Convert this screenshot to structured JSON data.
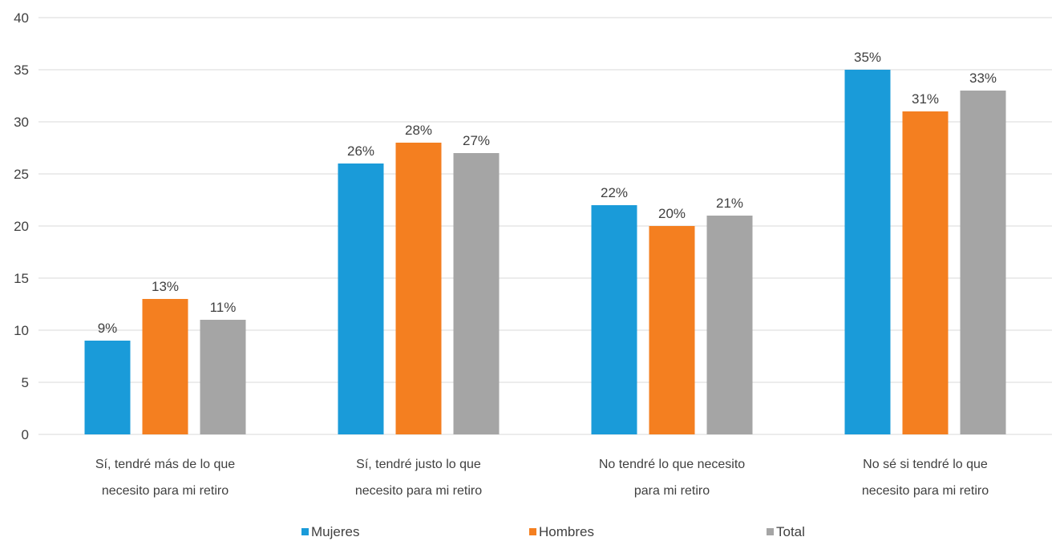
{
  "chart_data": {
    "type": "bar",
    "categories": [
      [
        "Sí, tendré más de lo que",
        "necesito para mi retiro"
      ],
      [
        "Sí, tendré justo lo que",
        "necesito para mi retiro"
      ],
      [
        "No tendré lo que necesito",
        "para mi retiro"
      ],
      [
        "No sé si tendré lo que",
        "necesito para mi retiro"
      ]
    ],
    "series": [
      {
        "name": "Mujeres",
        "color": "#1a9bd9",
        "values": [
          9,
          26,
          22,
          35
        ],
        "labels": [
          "9%",
          "26%",
          "22%",
          "35%"
        ]
      },
      {
        "name": "Hombres",
        "color": "#f47f20",
        "values": [
          13,
          28,
          20,
          31
        ],
        "labels": [
          "13%",
          "28%",
          "20%",
          "31%"
        ]
      },
      {
        "name": "Total",
        "color": "#a5a5a5",
        "values": [
          11,
          27,
          21,
          33
        ],
        "labels": [
          "11%",
          "27%",
          "21%",
          "33%"
        ]
      }
    ],
    "ylim": [
      0,
      40
    ],
    "yticks": [
      0,
      5,
      10,
      15,
      20,
      25,
      30,
      35,
      40
    ],
    "grid": true,
    "legend": "bottom",
    "title": "",
    "xlabel": "",
    "ylabel": ""
  }
}
